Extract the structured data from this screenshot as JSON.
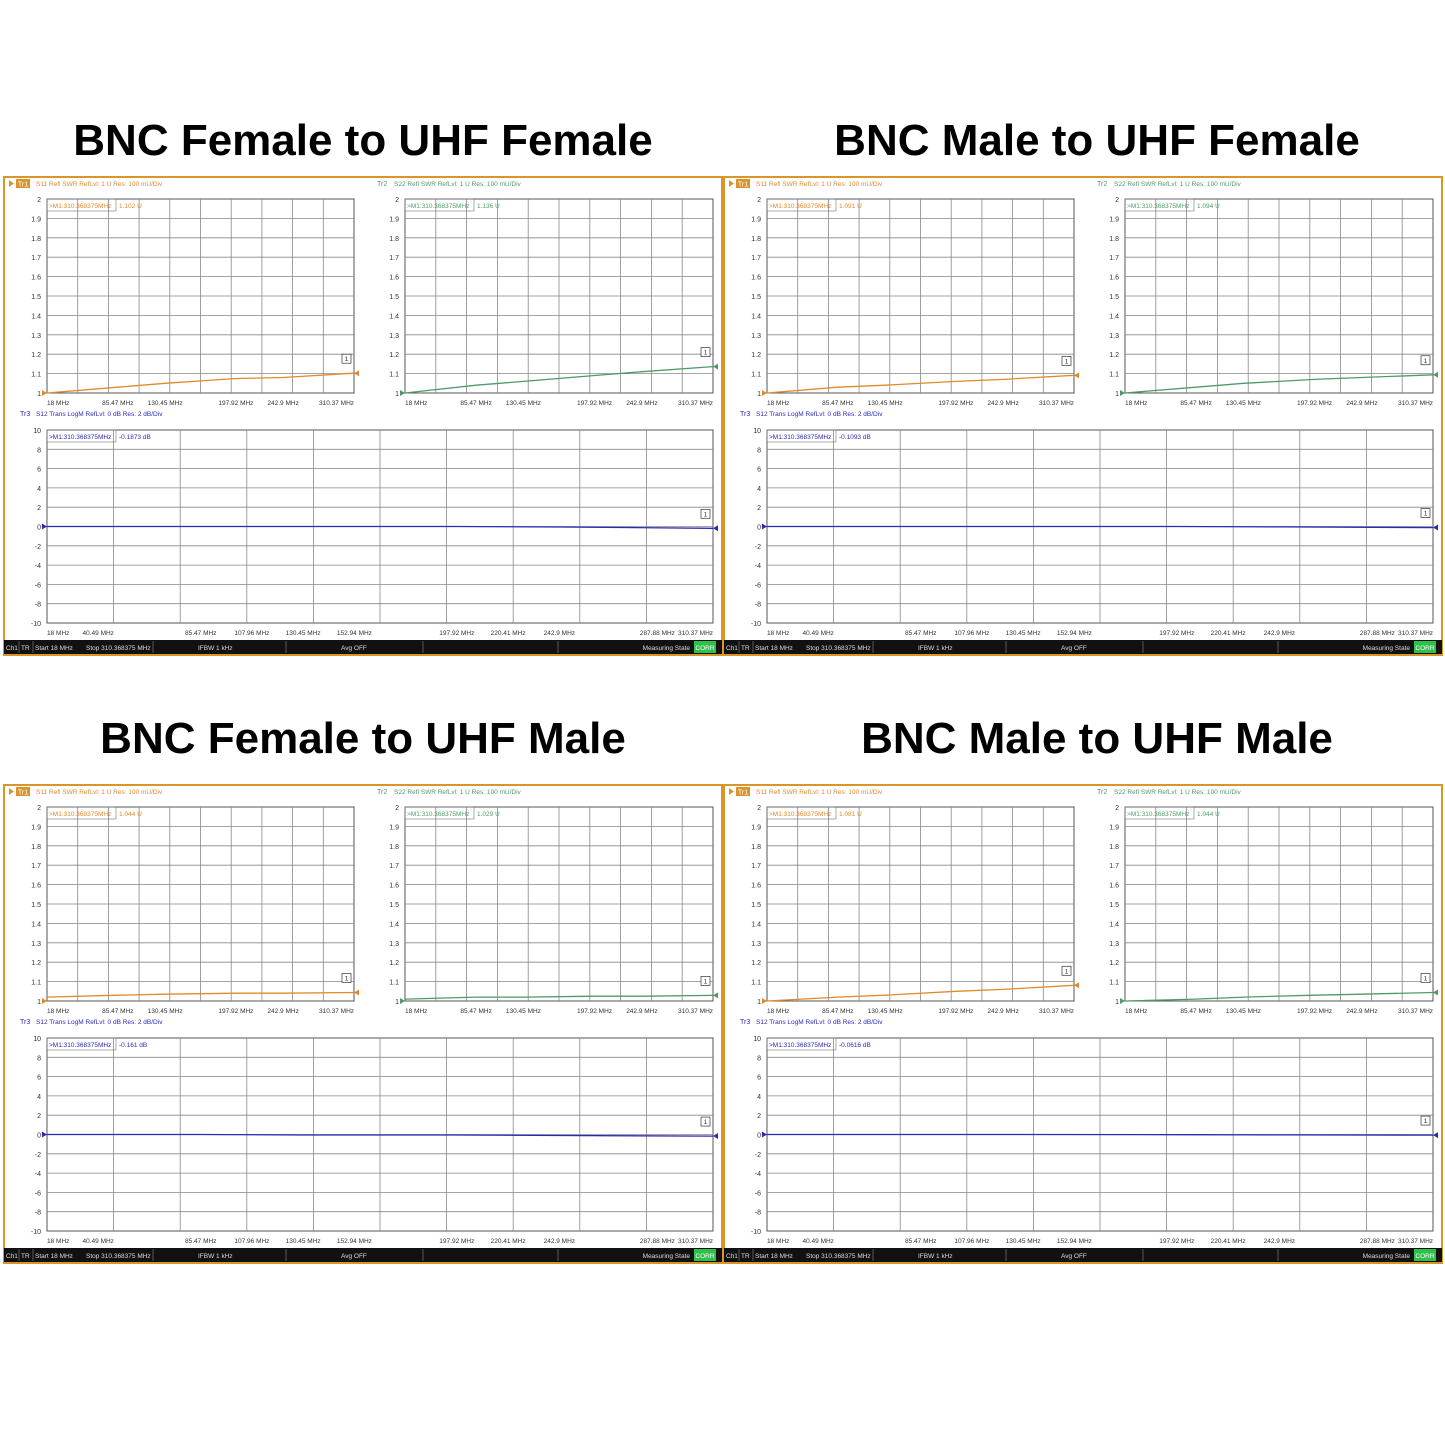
{
  "common": {
    "s11_header": "S11 Refl SWR RefLvl: 1  U Res: 100 mU/Div",
    "s22_header": "S22 Refl SWR RefLvl: 1  U Res: 100 mU/Div",
    "s12_header": "S12 Trans LogM RefLvl: 0  dB Res: 2  dB/Div",
    "tr1": "Tr1",
    "tr2": "Tr2",
    "tr3": "Tr3",
    "marker_prefix": "M1:310.368375MHz",
    "marker_flag": "1",
    "swr_unit": "U",
    "db_unit": "dB",
    "footer": {
      "ch": "Ch1",
      "tr": "TR",
      "start": "Start 18 MHz",
      "stop": "Stop 310.368375 MHz",
      "ifbw": "IFBW 1 kHz",
      "avg": "Avg OFF",
      "state": "Measuring State",
      "corr": "CORR"
    },
    "colors": {
      "s11": "#e08a2c",
      "s22": "#4f9a6a",
      "s12": "#2a2ab8",
      "frame": "#d9952a",
      "footer_bg": "#111111",
      "corr": "#2fbf4a"
    }
  },
  "chart_data": [
    {
      "title": "BNC Female to UHF Female",
      "type": "line",
      "swr_xticks": [
        "18 MHz",
        "85.47 MHz",
        "130.45 MHz",
        "197.92 MHz",
        "242.9 MHz",
        "310.37 MHz"
      ],
      "s12_xticks": [
        "18 MHz",
        "40.49 MHz",
        "85.47 MHz",
        "107.96 MHz",
        "130.45 MHz",
        "152.94 MHz",
        "197.92 MHz",
        "220.41 MHz",
        "242.9 MHz",
        "287.88 MHz",
        "310.37 MHz"
      ],
      "swr_yticks": [
        "2",
        "1.9",
        "1.8",
        "1.7",
        "1.6",
        "1.5",
        "1.4",
        "1.3",
        "1.2",
        "1.1",
        "1"
      ],
      "s12_yticks": [
        "10",
        "8",
        "6",
        "4",
        "2",
        "0",
        "-2",
        "-4",
        "-6",
        "-8",
        "-10"
      ],
      "x": [
        18,
        85.47,
        130.45,
        197.92,
        242.9,
        310.37
      ],
      "xlim": [
        18,
        310.37
      ],
      "swr_ylim": [
        1,
        2
      ],
      "s12_ylim": [
        -10,
        10
      ],
      "s11": {
        "marker": "1.102",
        "values": [
          1.0,
          1.03,
          1.05,
          1.075,
          1.08,
          1.102
        ]
      },
      "s22": {
        "marker": "1.136",
        "values": [
          1.0,
          1.04,
          1.06,
          1.09,
          1.11,
          1.136
        ]
      },
      "s12": {
        "marker": "-0.1873",
        "values": [
          0,
          0,
          0,
          0,
          -0.05,
          -0.1873
        ]
      }
    },
    {
      "title": "BNC Male to UHF Female",
      "type": "line",
      "swr_xticks": [
        "18 MHz",
        "85.47 MHz",
        "130.45 MHz",
        "197.92 MHz",
        "242.9 MHz",
        "310.37 MHz"
      ],
      "s12_xticks": [
        "18 MHz",
        "40.49 MHz",
        "85.47 MHz",
        "107.96 MHz",
        "130.45 MHz",
        "152.94 MHz",
        "197.92 MHz",
        "220.41 MHz",
        "242.9 MHz",
        "287.88 MHz",
        "310.37 MHz"
      ],
      "swr_yticks": [
        "2",
        "1.9",
        "1.8",
        "1.7",
        "1.6",
        "1.5",
        "1.4",
        "1.3",
        "1.2",
        "1.1",
        "1"
      ],
      "s12_yticks": [
        "10",
        "8",
        "6",
        "4",
        "2",
        "0",
        "-2",
        "-4",
        "-6",
        "-8",
        "-10"
      ],
      "x": [
        18,
        85.47,
        130.45,
        197.92,
        242.9,
        310.37
      ],
      "xlim": [
        18,
        310.37
      ],
      "swr_ylim": [
        1,
        2
      ],
      "s12_ylim": [
        -10,
        10
      ],
      "s11": {
        "marker": "1.091",
        "values": [
          1.0,
          1.03,
          1.04,
          1.06,
          1.07,
          1.091
        ]
      },
      "s22": {
        "marker": "1.094",
        "values": [
          1.0,
          1.03,
          1.05,
          1.07,
          1.08,
          1.094
        ]
      },
      "s12": {
        "marker": "-0.1093",
        "values": [
          0,
          0,
          0,
          0,
          -0.04,
          -0.1093
        ]
      }
    },
    {
      "title": "BNC Female to UHF Male",
      "type": "line",
      "swr_xticks": [
        "18 MHz",
        "85.47 MHz",
        "130.45 MHz",
        "197.92 MHz",
        "242.9 MHz",
        "310.37 MHz"
      ],
      "s12_xticks": [
        "18 MHz",
        "40.49 MHz",
        "85.47 MHz",
        "107.96 MHz",
        "130.45 MHz",
        "152.94 MHz",
        "197.92 MHz",
        "220.41 MHz",
        "242.9 MHz",
        "287.88 MHz",
        "310.37 MHz"
      ],
      "swr_yticks": [
        "2",
        "1.9",
        "1.8",
        "1.7",
        "1.6",
        "1.5",
        "1.4",
        "1.3",
        "1.2",
        "1.1",
        "1"
      ],
      "s12_yticks": [
        "10",
        "8",
        "6",
        "4",
        "2",
        "0",
        "-2",
        "-4",
        "-6",
        "-8",
        "-10"
      ],
      "x": [
        18,
        85.47,
        130.45,
        197.92,
        242.9,
        310.37
      ],
      "xlim": [
        18,
        310.37
      ],
      "swr_ylim": [
        1,
        2
      ],
      "s12_ylim": [
        -10,
        10
      ],
      "s11": {
        "marker": "1.044",
        "values": [
          1.02,
          1.03,
          1.035,
          1.04,
          1.04,
          1.044
        ]
      },
      "s22": {
        "marker": "1.029",
        "values": [
          1.01,
          1.02,
          1.02,
          1.025,
          1.025,
          1.029
        ]
      },
      "s12": {
        "marker": "-0.161",
        "values": [
          0,
          0,
          -0.05,
          -0.05,
          -0.1,
          -0.161
        ]
      }
    },
    {
      "title": "BNC Male to UHF Male",
      "type": "line",
      "swr_xticks": [
        "18 MHz",
        "85.47 MHz",
        "130.45 MHz",
        "197.92 MHz",
        "242.9 MHz",
        "310.37 MHz"
      ],
      "s12_xticks": [
        "18 MHz",
        "40.49 MHz",
        "85.47 MHz",
        "107.96 MHz",
        "130.45 MHz",
        "152.94 MHz",
        "197.92 MHz",
        "220.41 MHz",
        "242.9 MHz",
        "287.88 MHz",
        "310.37 MHz"
      ],
      "swr_yticks": [
        "2",
        "1.9",
        "1.8",
        "1.7",
        "1.6",
        "1.5",
        "1.4",
        "1.3",
        "1.2",
        "1.1",
        "1"
      ],
      "s12_yticks": [
        "10",
        "8",
        "6",
        "4",
        "2",
        "0",
        "-2",
        "-4",
        "-6",
        "-8",
        "-10"
      ],
      "x": [
        18,
        85.47,
        130.45,
        197.92,
        242.9,
        310.37
      ],
      "xlim": [
        18,
        310.37
      ],
      "swr_ylim": [
        1,
        2
      ],
      "s12_ylim": [
        -10,
        10
      ],
      "s11": {
        "marker": "1.081",
        "values": [
          1.0,
          1.02,
          1.03,
          1.05,
          1.06,
          1.081
        ]
      },
      "s22": {
        "marker": "1.044",
        "values": [
          1.0,
          1.01,
          1.02,
          1.03,
          1.035,
          1.044
        ]
      },
      "s12": {
        "marker": "-0.0616",
        "values": [
          0,
          0,
          0,
          -0.02,
          -0.04,
          -0.0616
        ]
      }
    }
  ]
}
